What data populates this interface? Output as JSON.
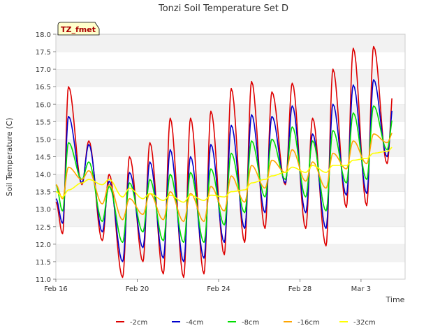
{
  "chart_data": {
    "type": "line",
    "title": "Tonzi Soil Temperature Set D",
    "xlabel": "Time",
    "ylabel": "Soil Temperature (C)",
    "xlim": [
      "Feb 16",
      "Mar 5"
    ],
    "ylim": [
      11.0,
      18.0
    ],
    "y_ticks": [
      "11.0",
      "11.5",
      "12.0",
      "12.5",
      "13.0",
      "13.5",
      "14.0",
      "14.5",
      "15.0",
      "15.5",
      "16.0",
      "16.5",
      "17.0",
      "17.5",
      "18.0"
    ],
    "x_ticks": [
      {
        "label": "Feb 16",
        "day": 0
      },
      {
        "label": "Feb 20",
        "day": 4
      },
      {
        "label": "Feb 24",
        "day": 8
      },
      {
        "label": "Feb 28",
        "day": 12
      },
      {
        "label": "Mar 3",
        "day": 15
      }
    ],
    "annotation": "TZ_fmet",
    "grid": "horizontal bands",
    "legend_position": "bottom",
    "daily_extremes_note": "values per series: daily maximum and minimum (deg C), one pair per day starting Feb 16",
    "series": [
      {
        "name": "-2cm",
        "color": "#dd0000",
        "start": 13.2,
        "max": [
          16.5,
          14.95,
          14.0,
          14.5,
          14.9,
          15.6,
          15.6,
          15.8,
          16.45,
          16.65,
          16.35,
          16.6,
          15.6,
          17.0,
          17.6,
          17.65,
          16.65
        ],
        "min": [
          12.3,
          13.7,
          12.1,
          11.05,
          11.5,
          11.15,
          11.05,
          11.15,
          11.7,
          12.05,
          12.45,
          13.7,
          12.45,
          11.95,
          13.05,
          13.1,
          14.3
        ],
        "end": 15.4
      },
      {
        "name": "-4cm",
        "color": "#0000cc",
        "start": 13.3,
        "max": [
          15.65,
          14.85,
          13.8,
          14.05,
          14.35,
          14.7,
          14.5,
          14.85,
          15.4,
          15.7,
          15.65,
          15.95,
          15.15,
          16.0,
          16.55,
          16.7,
          16.15
        ],
        "min": [
          12.6,
          13.75,
          12.35,
          11.5,
          11.9,
          11.6,
          11.5,
          11.6,
          12.05,
          12.45,
          12.9,
          13.75,
          12.9,
          12.45,
          13.4,
          13.45,
          14.5
        ],
        "end": 15.45
      },
      {
        "name": "-8cm",
        "color": "#00dd00",
        "start": 13.7,
        "max": [
          14.9,
          14.35,
          13.65,
          13.75,
          13.85,
          14.0,
          14.05,
          14.15,
          14.6,
          14.95,
          15.0,
          15.35,
          14.95,
          15.25,
          15.75,
          15.95,
          15.75
        ],
        "min": [
          12.95,
          13.85,
          12.65,
          12.05,
          12.35,
          12.1,
          12.05,
          12.05,
          12.55,
          12.9,
          13.35,
          13.85,
          13.35,
          12.95,
          13.75,
          13.85,
          14.7
        ],
        "end": 15.5
      },
      {
        "name": "-16cm",
        "color": "#ffa500",
        "start": 13.7,
        "max": [
          14.2,
          14.1,
          13.7,
          13.3,
          13.45,
          13.5,
          13.45,
          13.65,
          13.95,
          14.25,
          14.4,
          14.7,
          14.35,
          14.6,
          14.95,
          15.15,
          15.25
        ],
        "min": [
          13.3,
          13.85,
          13.15,
          12.7,
          12.85,
          12.7,
          12.65,
          12.65,
          12.95,
          13.2,
          13.6,
          14.05,
          13.8,
          13.6,
          14.15,
          14.3,
          14.9
        ],
        "end": 15.25
      },
      {
        "name": "-32cm",
        "color": "#ffff00",
        "start": 13.5,
        "max": [
          13.55,
          13.85,
          13.85,
          13.6,
          13.45,
          13.4,
          13.4,
          13.4,
          13.5,
          13.75,
          13.95,
          14.2,
          14.25,
          14.25,
          14.4,
          14.6,
          14.8
        ],
        "min": [
          13.35,
          13.75,
          13.7,
          13.35,
          13.3,
          13.25,
          13.2,
          13.25,
          13.35,
          13.55,
          13.85,
          14.05,
          14.05,
          14.05,
          14.25,
          14.45,
          14.65
        ],
        "end": 14.8
      }
    ]
  }
}
